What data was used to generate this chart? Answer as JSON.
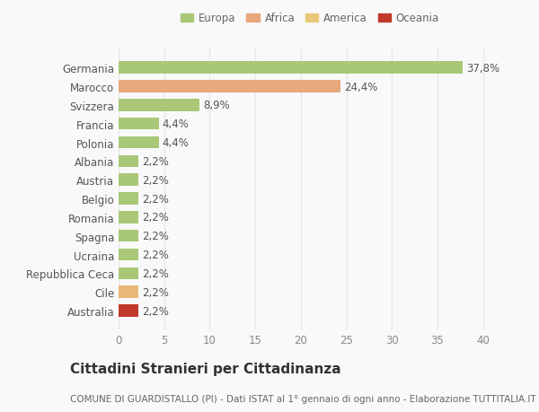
{
  "categories": [
    "Australia",
    "Cile",
    "Repubblica Ceca",
    "Ucraina",
    "Spagna",
    "Romania",
    "Belgio",
    "Austria",
    "Albania",
    "Polonia",
    "Francia",
    "Svizzera",
    "Marocco",
    "Germania"
  ],
  "values": [
    2.2,
    2.2,
    2.2,
    2.2,
    2.2,
    2.2,
    2.2,
    2.2,
    2.2,
    4.4,
    4.4,
    8.9,
    24.4,
    37.8
  ],
  "colors": [
    "#c0392b",
    "#e8b87a",
    "#a8c878",
    "#a8c878",
    "#a8c878",
    "#a8c878",
    "#a8c878",
    "#a8c878",
    "#a8c878",
    "#a8c878",
    "#a8c878",
    "#a8c878",
    "#e8a87c",
    "#a8c878"
  ],
  "labels": [
    "2,2%",
    "2,2%",
    "2,2%",
    "2,2%",
    "2,2%",
    "2,2%",
    "2,2%",
    "2,2%",
    "2,2%",
    "4,4%",
    "4,4%",
    "8,9%",
    "24,4%",
    "37,8%"
  ],
  "legend": [
    {
      "label": "Europa",
      "color": "#a8c878"
    },
    {
      "label": "Africa",
      "color": "#e8a87c"
    },
    {
      "label": "America",
      "color": "#e8c878"
    },
    {
      "label": "Oceania",
      "color": "#c0392b"
    }
  ],
  "title": "Cittadini Stranieri per Cittadinanza",
  "subtitle": "COMUNE DI GUARDISTALLO (PI) - Dati ISTAT al 1° gennaio di ogni anno - Elaborazione TUTTITALIA.IT",
  "xlim": [
    0,
    42
  ],
  "xticks": [
    0,
    5,
    10,
    15,
    20,
    25,
    30,
    35,
    40
  ],
  "background_color": "#f9f9f9",
  "grid_color": "#e8e8e8",
  "bar_height": 0.65,
  "label_fontsize": 8.5,
  "tick_fontsize": 8.5,
  "title_fontsize": 11,
  "subtitle_fontsize": 7.5
}
